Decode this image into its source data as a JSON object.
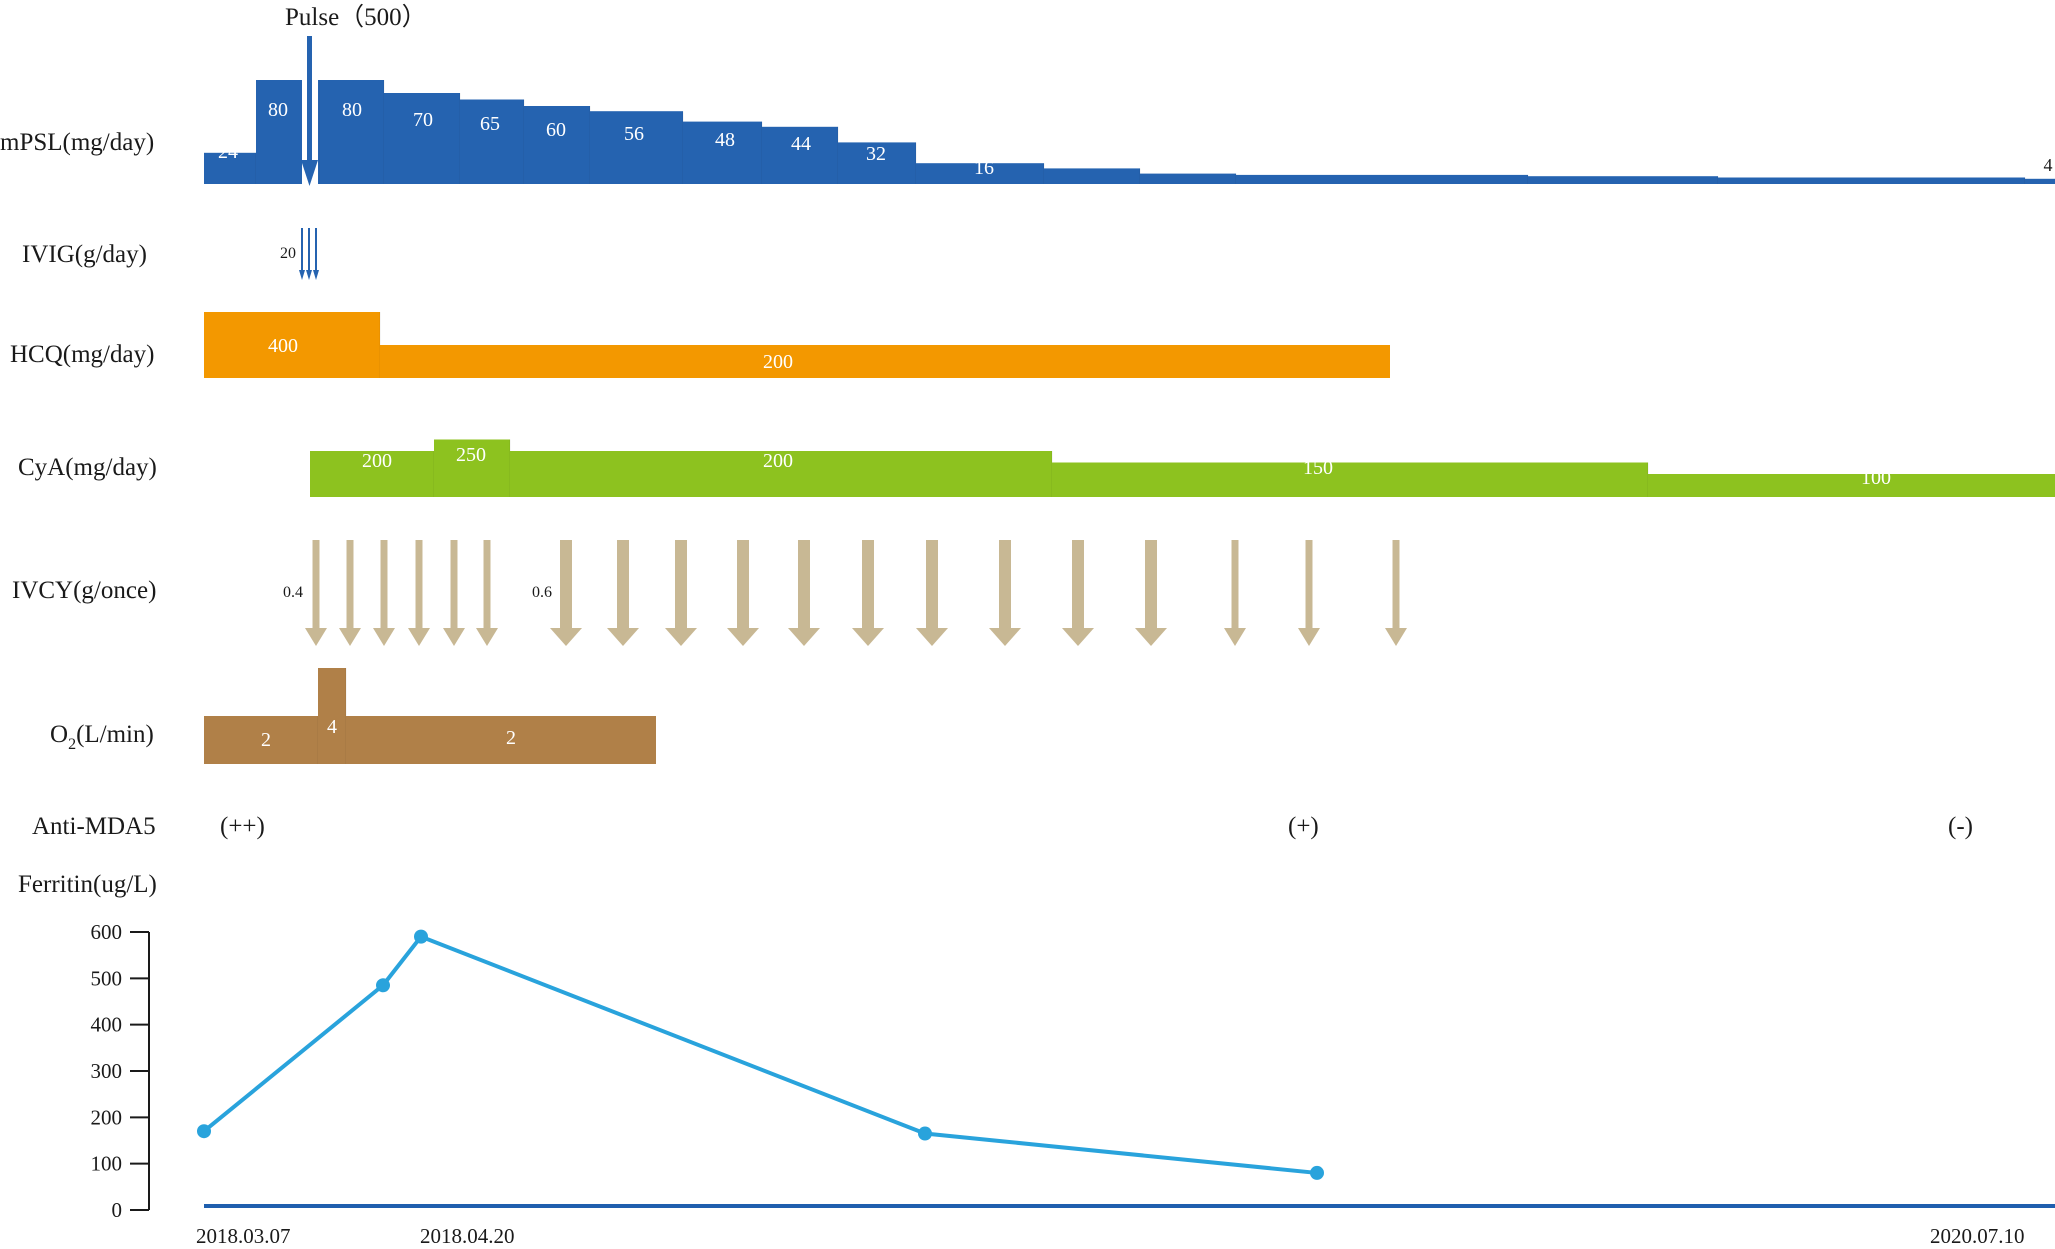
{
  "colors": {
    "mpsl": "#2563b0",
    "ivig": "#2563b0",
    "hcq": "#f39800",
    "cya": "#8dc21f",
    "ivcy": "#c8b894",
    "o2": "#b08048",
    "ferritin": "#29a3dc",
    "axis": "#1f5fae"
  },
  "row_labels": {
    "mpsl": "mPSL(mg/day)",
    "ivig": "IVIG(g/day)",
    "hcq": "HCQ(mg/day)",
    "cya": "CyA(mg/day)",
    "ivcy": "IVCY(g/once)",
    "o2_main": "O",
    "o2_sub": "2",
    "o2_unit": "(L/min)",
    "anti_mda5": "Anti-MDA5",
    "ferritin": "Ferritin(ug/L)"
  },
  "pulse_label": "Pulse（500）",
  "ivig_dose": "20",
  "ivcy_doses": [
    "0.4",
    "0.6"
  ],
  "chart_data": {
    "type": "timeline",
    "mpsl": [
      {
        "value": 24,
        "label": "24"
      },
      {
        "value": 80,
        "label": "80"
      },
      {
        "value": 80,
        "label": "80"
      },
      {
        "value": 70,
        "label": "70"
      },
      {
        "value": 65,
        "label": "65"
      },
      {
        "value": 60,
        "label": "60"
      },
      {
        "value": 56,
        "label": "56"
      },
      {
        "value": 48,
        "label": "48"
      },
      {
        "value": 44,
        "label": "44"
      },
      {
        "value": 32,
        "label": "32"
      },
      {
        "value": 16,
        "label": "16"
      },
      {
        "value": 12,
        "label": ""
      },
      {
        "value": 8,
        "label": ""
      },
      {
        "value": 7,
        "label": ""
      },
      {
        "value": 6,
        "label": ""
      },
      {
        "value": 5,
        "label": ""
      },
      {
        "value": 4,
        "label": "4"
      }
    ],
    "hcq": [
      {
        "value": 400,
        "label": "400"
      },
      {
        "value": 200,
        "label": "200"
      }
    ],
    "cya": [
      {
        "value": 200,
        "label": "200"
      },
      {
        "value": 250,
        "label": "250"
      },
      {
        "value": 200,
        "label": "200"
      },
      {
        "value": 150,
        "label": "150"
      },
      {
        "value": 100,
        "label": "100"
      }
    ],
    "o2": [
      {
        "value": 2,
        "label": "2"
      },
      {
        "value": 4,
        "label": "4"
      },
      {
        "value": 2,
        "label": "2"
      }
    ],
    "anti_mda5": [
      "(++)",
      "(+)",
      "(-)"
    ],
    "ferritin": {
      "values": [
        170,
        485,
        590,
        165,
        80
      ],
      "ylim": [
        0,
        600
      ],
      "yticks": [
        "0",
        "100",
        "200",
        "300",
        "400",
        "500",
        "600"
      ]
    },
    "x_labels": [
      "2018.03.07",
      "2018.04.20",
      "2020.07.10"
    ]
  }
}
